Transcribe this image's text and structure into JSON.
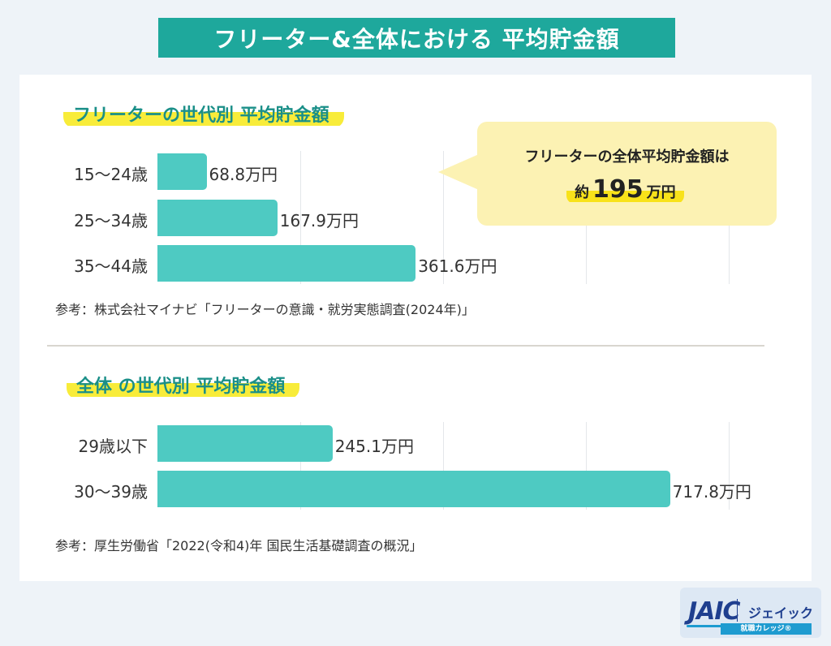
{
  "title": "フリーター&全体における 平均貯金額",
  "sections": [
    {
      "heading": "フリーターの世代別 平均貯金額",
      "source": "参考：株式会社マイナビ「フリーターの意識・就労実態調査(2024年)」"
    },
    {
      "heading": "全体 の世代別 平均貯金額",
      "source": "参考：厚生労働省「2022(令和4)年 国民生活基礎調査の概況」"
    }
  ],
  "callout": {
    "line1": "フリーターの全体平均貯金額は",
    "prefix": "約",
    "value": "195",
    "unit": "万円"
  },
  "logo": {
    "brand": "JAIC",
    "kana": "ジェイック",
    "sub": "就職カレッジ®"
  },
  "colors": {
    "bar": "#4ecac2",
    "accent": "#1ea89c",
    "highlight": "#f8ec3a",
    "callout": "#fcf2b3"
  },
  "chart_data": [
    {
      "type": "bar",
      "orientation": "horizontal",
      "title": "フリーターの世代別 平均貯金額",
      "categories": [
        "15〜24歳",
        "25〜34歳",
        "35〜44歳"
      ],
      "values": [
        68.8,
        167.9,
        361.6
      ],
      "value_labels": [
        "68.8万円",
        "167.9万円",
        "361.6万円"
      ],
      "unit": "万円",
      "xlim": [
        0,
        800
      ],
      "grid": true
    },
    {
      "type": "bar",
      "orientation": "horizontal",
      "title": "全体 の世代別 平均貯金額",
      "categories": [
        "29歳以下",
        "30〜39歳"
      ],
      "values": [
        245.1,
        717.8
      ],
      "value_labels": [
        "245.1万円",
        "717.8万円"
      ],
      "unit": "万円",
      "xlim": [
        0,
        800
      ],
      "grid": true
    }
  ]
}
